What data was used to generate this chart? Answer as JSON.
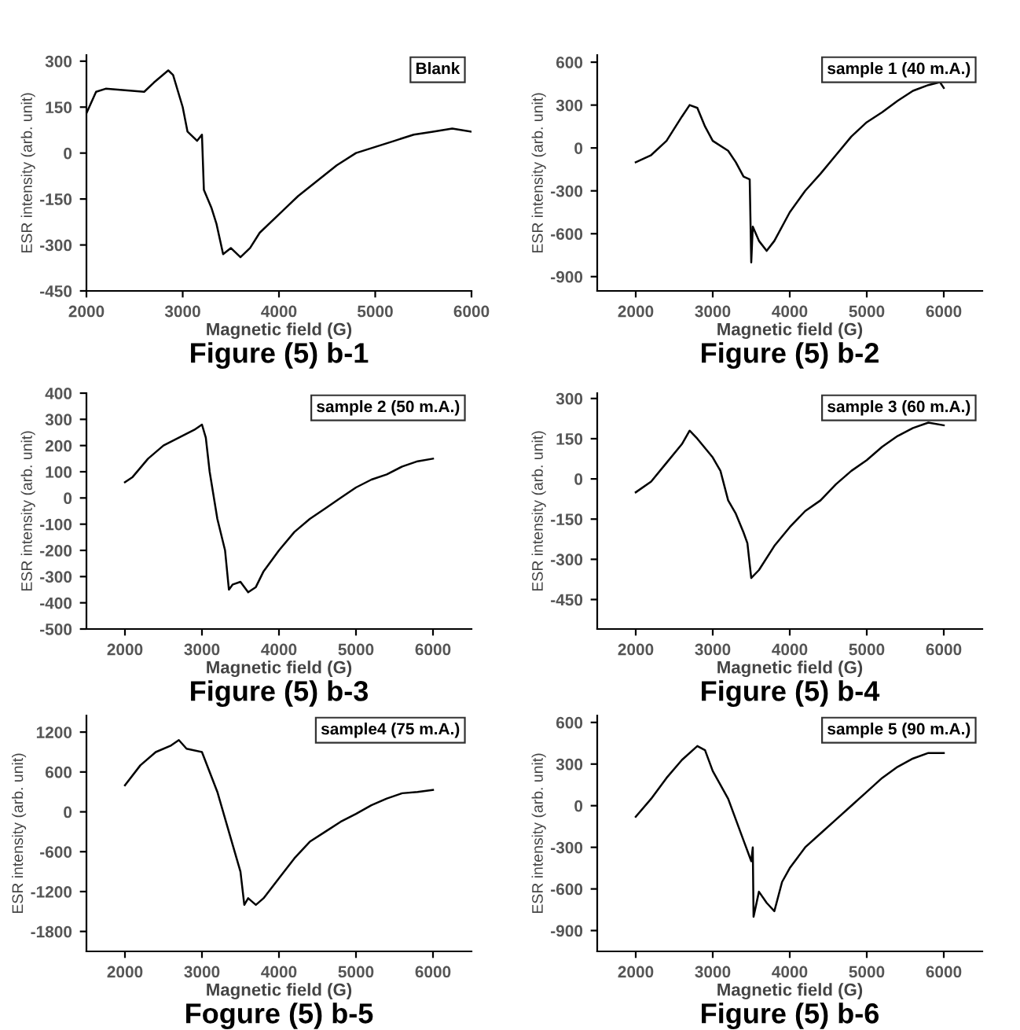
{
  "chart_data": [
    {
      "type": "line",
      "title": "Figure (5) b-1",
      "xlabel": "Magnetic field (G)",
      "ylabel": "ESR intensity (arb. unit)",
      "annotations": [
        "Blank"
      ],
      "xlim": [
        2000,
        6000
      ],
      "xticks": [
        2000,
        3000,
        4000,
        5000,
        6000
      ],
      "ylim": [
        -450,
        320
      ],
      "yticks": [
        -450,
        -300,
        -150,
        0,
        150,
        300
      ],
      "grid": false,
      "legend": false,
      "series": [
        {
          "color": "#000000",
          "x": [
            2000,
            2100,
            2200,
            2400,
            2600,
            2700,
            2850,
            2900,
            3000,
            3050,
            3150,
            3200,
            3220,
            3300,
            3350,
            3420,
            3500,
            3600,
            3700,
            3800,
            4000,
            4200,
            4400,
            4600,
            4800,
            5000,
            5200,
            5400,
            5600,
            5800,
            6000
          ],
          "values": [
            130,
            200,
            210,
            205,
            200,
            230,
            270,
            255,
            150,
            70,
            40,
            60,
            -120,
            -180,
            -230,
            -330,
            -310,
            -340,
            -310,
            -260,
            -200,
            -140,
            -90,
            -40,
            0,
            20,
            40,
            60,
            70,
            80,
            70
          ]
        }
      ]
    },
    {
      "type": "line",
      "title": "Figure (5) b-2",
      "xlabel": "Magnetic field (G)",
      "ylabel": "ESR intensity (arb. unit)",
      "annotations": [
        "sample 1 (40 m.A.)"
      ],
      "xlim": [
        1500,
        6500
      ],
      "xticks": [
        2000,
        3000,
        4000,
        5000,
        6000
      ],
      "ylim": [
        -1000,
        650
      ],
      "yticks": [
        -900,
        -600,
        -300,
        0,
        300,
        600
      ],
      "grid": false,
      "legend": false,
      "series": [
        {
          "color": "#000000",
          "x": [
            2000,
            2200,
            2400,
            2600,
            2700,
            2800,
            2900,
            3000,
            3200,
            3300,
            3400,
            3480,
            3500,
            3520,
            3600,
            3700,
            3800,
            4000,
            4200,
            4400,
            4600,
            4800,
            5000,
            5200,
            5400,
            5600,
            5800,
            5950,
            6000
          ],
          "values": [
            -100,
            -50,
            50,
            220,
            300,
            280,
            150,
            50,
            -20,
            -100,
            -200,
            -220,
            -800,
            -550,
            -650,
            -720,
            -650,
            -450,
            -300,
            -180,
            -50,
            80,
            180,
            250,
            330,
            400,
            440,
            460,
            420
          ]
        }
      ]
    },
    {
      "type": "line",
      "title": "Figure (5) b-3",
      "xlabel": "Magnetic field (G)",
      "ylabel": "ESR intensity (arb. unit)",
      "annotations": [
        "sample 2 (50 m.A.)"
      ],
      "xlim": [
        1500,
        6500
      ],
      "xticks": [
        2000,
        3000,
        4000,
        5000,
        6000
      ],
      "ylim": [
        -500,
        400
      ],
      "yticks": [
        -500,
        -400,
        -300,
        -200,
        -100,
        0,
        100,
        200,
        300,
        400
      ],
      "grid": false,
      "legend": false,
      "series": [
        {
          "color": "#000000",
          "x": [
            2000,
            2100,
            2300,
            2500,
            2700,
            2900,
            3000,
            3050,
            3100,
            3200,
            3300,
            3350,
            3400,
            3500,
            3600,
            3700,
            3800,
            4000,
            4200,
            4400,
            4600,
            4800,
            5000,
            5200,
            5400,
            5600,
            5800,
            6000
          ],
          "values": [
            60,
            80,
            150,
            200,
            230,
            260,
            280,
            230,
            100,
            -80,
            -200,
            -350,
            -330,
            -320,
            -360,
            -340,
            -280,
            -200,
            -130,
            -80,
            -40,
            0,
            40,
            70,
            90,
            120,
            140,
            150
          ]
        }
      ]
    },
    {
      "type": "line",
      "title": "Figure (5) b-4",
      "xlabel": "Magnetic field (G)",
      "ylabel": "ESR intensity (arb. unit)",
      "annotations": [
        "sample 3 (60 m.A.)"
      ],
      "xlim": [
        1500,
        6500
      ],
      "xticks": [
        2000,
        3000,
        4000,
        5000,
        6000
      ],
      "ylim": [
        -560,
        320
      ],
      "yticks": [
        -450,
        -300,
        -150,
        0,
        150,
        300
      ],
      "grid": false,
      "legend": false,
      "series": [
        {
          "color": "#000000",
          "x": [
            2000,
            2200,
            2400,
            2600,
            2700,
            2800,
            3000,
            3100,
            3200,
            3300,
            3400,
            3450,
            3500,
            3600,
            3800,
            4000,
            4200,
            4400,
            4600,
            4800,
            5000,
            5200,
            5400,
            5600,
            5800,
            6000
          ],
          "values": [
            -50,
            -10,
            60,
            130,
            180,
            150,
            80,
            30,
            -80,
            -130,
            -200,
            -240,
            -370,
            -340,
            -250,
            -180,
            -120,
            -80,
            -20,
            30,
            70,
            120,
            160,
            190,
            210,
            200
          ]
        }
      ]
    },
    {
      "type": "line",
      "title": "Fogure (5) b-5",
      "xlabel": "Magnetic field (G)",
      "ylabel": "ESR intensity (arb. unit)",
      "annotations": [
        "sample4 (75 m.A.)"
      ],
      "xlim": [
        1500,
        6500
      ],
      "xticks": [
        2000,
        3000,
        4000,
        5000,
        6000
      ],
      "ylim": [
        -2100,
        1450
      ],
      "yticks": [
        -1800,
        -1200,
        -600,
        0,
        600,
        1200
      ],
      "grid": false,
      "legend": false,
      "series": [
        {
          "color": "#000000",
          "x": [
            2000,
            2200,
            2400,
            2600,
            2700,
            2800,
            3000,
            3200,
            3400,
            3500,
            3550,
            3600,
            3700,
            3800,
            4000,
            4200,
            4400,
            4600,
            4800,
            5000,
            5200,
            5400,
            5600,
            5800,
            6000
          ],
          "values": [
            400,
            700,
            900,
            1000,
            1080,
            950,
            900,
            300,
            -500,
            -900,
            -1400,
            -1300,
            -1400,
            -1300,
            -1000,
            -700,
            -450,
            -300,
            -150,
            -30,
            100,
            200,
            280,
            300,
            330
          ]
        }
      ]
    },
    {
      "type": "line",
      "title": "Figure (5) b-6",
      "xlabel": "Magnetic field (G)",
      "ylabel": "ESR intensity (arb. unit)",
      "annotations": [
        "sample 5 (90 m.A.)"
      ],
      "xlim": [
        1500,
        6500
      ],
      "xticks": [
        2000,
        3000,
        4000,
        5000,
        6000
      ],
      "ylim": [
        -1050,
        650
      ],
      "yticks": [
        -900,
        -600,
        -300,
        0,
        300,
        600
      ],
      "grid": false,
      "legend": false,
      "series": [
        {
          "color": "#000000",
          "x": [
            2000,
            2200,
            2400,
            2600,
            2800,
            2900,
            3000,
            3200,
            3400,
            3500,
            3520,
            3530,
            3600,
            3700,
            3800,
            3900,
            4000,
            4200,
            4400,
            4600,
            4800,
            5000,
            5200,
            5400,
            5600,
            5800,
            6000
          ],
          "values": [
            -80,
            50,
            200,
            330,
            430,
            400,
            250,
            50,
            -250,
            -400,
            -300,
            -800,
            -620,
            -700,
            -760,
            -550,
            -450,
            -300,
            -200,
            -100,
            0,
            100,
            200,
            280,
            340,
            380,
            380
          ]
        }
      ]
    }
  ]
}
